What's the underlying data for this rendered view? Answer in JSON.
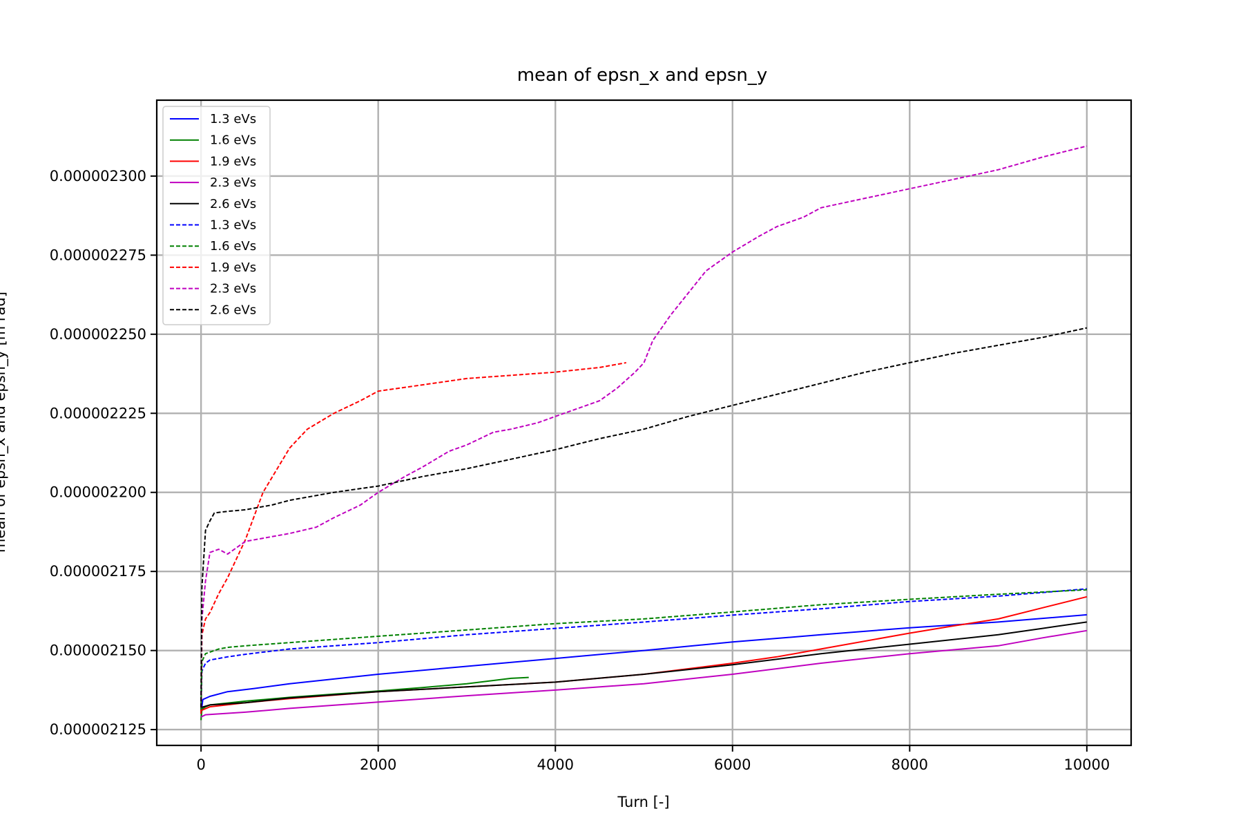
{
  "chart_data": {
    "type": "line",
    "title": "mean of epsn_x and epsn_y",
    "xlabel": "Turn [-]",
    "ylabel": "mean of epsn_x and epsn_y [m rad]",
    "xlim": [
      -500,
      10500
    ],
    "ylim": [
      2.12e-06,
      2.324e-06
    ],
    "xticks": [
      0,
      2000,
      4000,
      6000,
      8000,
      10000
    ],
    "xtick_labels": [
      "0",
      "2000",
      "4000",
      "6000",
      "8000",
      "10000"
    ],
    "yticks": [
      2.125e-06,
      2.15e-06,
      2.175e-06,
      2.2e-06,
      2.225e-06,
      2.25e-06,
      2.275e-06,
      2.3e-06
    ],
    "ytick_labels": [
      "0.000002125",
      "0.000002150",
      "0.000002175",
      "0.000002200",
      "0.000002225",
      "0.000002250",
      "0.000002275",
      "0.000002300"
    ],
    "grid": true,
    "legend_position": "top-left",
    "series": [
      {
        "name": "1.3 eVs",
        "color": "#0000ff",
        "style": "solid",
        "x": [
          0,
          20,
          100,
          300,
          600,
          1000,
          2000,
          3000,
          4000,
          5000,
          6000,
          7000,
          8000,
          9000,
          10000
        ],
        "y": [
          2.13e-06,
          2.1345e-06,
          2.1355e-06,
          2.137e-06,
          2.138e-06,
          2.1395e-06,
          2.1425e-06,
          2.145e-06,
          2.1475e-06,
          2.15e-06,
          2.1527e-06,
          2.155e-06,
          2.1572e-06,
          2.159e-06,
          2.1613e-06
        ]
      },
      {
        "name": "1.6 eVs",
        "color": "#008000",
        "style": "solid",
        "x": [
          0,
          10,
          50,
          100,
          500,
          1000,
          1500,
          2000,
          2500,
          3000,
          3500,
          3700
        ],
        "y": [
          2.128e-06,
          2.1315e-06,
          2.1322e-06,
          2.1328e-06,
          2.134e-06,
          2.1352e-06,
          2.1362e-06,
          2.1372e-06,
          2.1383e-06,
          2.1395e-06,
          2.1412e-06,
          2.1415e-06
        ]
      },
      {
        "name": "1.9 eVs",
        "color": "#ff0000",
        "style": "solid",
        "x": [
          0,
          100,
          500,
          1000,
          2000,
          3000,
          4000,
          5000,
          6000,
          6500,
          7000,
          8000,
          8500,
          9000,
          9500,
          10000
        ],
        "y": [
          2.131e-06,
          2.1322e-06,
          2.1335e-06,
          2.1348e-06,
          2.137e-06,
          2.1385e-06,
          2.14e-06,
          2.1425e-06,
          2.146e-06,
          2.148e-06,
          2.1505e-06,
          2.1555e-06,
          2.1578e-06,
          2.16e-06,
          2.1635e-06,
          2.167e-06
        ]
      },
      {
        "name": "2.3 eVs",
        "color": "#bf00bf",
        "style": "solid",
        "x": [
          0,
          50,
          500,
          1000,
          2000,
          3000,
          4000,
          5000,
          6000,
          7000,
          8000,
          9000,
          9500,
          10000
        ],
        "y": [
          2.129e-06,
          2.1297e-06,
          2.1305e-06,
          2.1317e-06,
          2.1337e-06,
          2.1357e-06,
          2.1375e-06,
          2.1395e-06,
          2.1425e-06,
          2.146e-06,
          2.149e-06,
          2.1515e-06,
          2.154e-06,
          2.1563e-06
        ]
      },
      {
        "name": "2.6 eVs",
        "color": "#000000",
        "style": "solid",
        "x": [
          0,
          100,
          500,
          1000,
          2000,
          3000,
          4000,
          5000,
          6000,
          7000,
          8000,
          9000,
          9500,
          10000
        ],
        "y": [
          2.132e-06,
          2.1328e-06,
          2.1335e-06,
          2.135e-06,
          2.137e-06,
          2.1385e-06,
          2.14e-06,
          2.1425e-06,
          2.1455e-06,
          2.149e-06,
          2.152e-06,
          2.155e-06,
          2.157e-06,
          2.159e-06
        ]
      },
      {
        "name": "1.3 eVs",
        "color": "#0000ff",
        "style": "dashed",
        "x": [
          0,
          10,
          50,
          100,
          300,
          500,
          1000,
          2000,
          3000,
          4000,
          5000,
          6000,
          7000,
          8000,
          9000,
          10000
        ],
        "y": [
          2.131e-06,
          2.1435e-06,
          2.146e-06,
          2.147e-06,
          2.148e-06,
          2.1488e-06,
          2.1505e-06,
          2.1525e-06,
          2.155e-06,
          2.157e-06,
          2.159e-06,
          2.1612e-06,
          2.1632e-06,
          2.1655e-06,
          2.1672e-06,
          2.1695e-06
        ]
      },
      {
        "name": "1.6 eVs",
        "color": "#008000",
        "style": "dashed",
        "x": [
          0,
          10,
          50,
          100,
          200,
          300,
          500,
          1000,
          2000,
          3000,
          4000,
          5000,
          6000,
          7000,
          8000,
          9000,
          10000
        ],
        "y": [
          2.131e-06,
          2.1465e-06,
          2.149e-06,
          2.1495e-06,
          2.1505e-06,
          2.151e-06,
          2.1515e-06,
          2.1525e-06,
          2.1545e-06,
          2.1565e-06,
          2.1585e-06,
          2.16e-06,
          2.1622e-06,
          2.1645e-06,
          2.1662e-06,
          2.1678e-06,
          2.1692e-06
        ]
      },
      {
        "name": "1.9 eVs",
        "color": "#ff0000",
        "style": "dashed",
        "x": [
          0,
          10,
          50,
          100,
          200,
          300,
          500,
          700,
          1000,
          1200,
          1500,
          1800,
          2000,
          2500,
          3000,
          3500,
          4000,
          4500,
          4800
        ],
        "y": [
          2.13e-06,
          2.155e-06,
          2.16e-06,
          2.162e-06,
          2.168e-06,
          2.173e-06,
          2.185e-06,
          2.2e-06,
          2.214e-06,
          2.22e-06,
          2.225e-06,
          2.229e-06,
          2.232e-06,
          2.234e-06,
          2.236e-06,
          2.237e-06,
          2.238e-06,
          2.2395e-06,
          2.241e-06
        ]
      },
      {
        "name": "2.3 eVs",
        "color": "#bf00bf",
        "style": "dashed",
        "x": [
          0,
          10,
          50,
          100,
          200,
          300,
          500,
          700,
          1000,
          1300,
          1500,
          1800,
          2000,
          2300,
          2500,
          2800,
          3000,
          3300,
          3500,
          3800,
          4000,
          4200,
          4500,
          4700,
          4900,
          5000,
          5100,
          5300,
          5500,
          5700,
          6000,
          6300,
          6500,
          6800,
          7000,
          7500,
          8000,
          8500,
          9000,
          9500,
          10000
        ],
        "y": [
          2.132e-06,
          2.16e-06,
          2.172e-06,
          2.181e-06,
          2.182e-06,
          2.1805e-06,
          2.1845e-06,
          2.1855e-06,
          2.187e-06,
          2.189e-06,
          2.192e-06,
          2.196e-06,
          2.2e-06,
          2.205e-06,
          2.208e-06,
          2.213e-06,
          2.215e-06,
          2.219e-06,
          2.22e-06,
          2.222e-06,
          2.224e-06,
          2.226e-06,
          2.229e-06,
          2.233e-06,
          2.238e-06,
          2.241e-06,
          2.248e-06,
          2.256e-06,
          2.263e-06,
          2.27e-06,
          2.276e-06,
          2.281e-06,
          2.284e-06,
          2.287e-06,
          2.29e-06,
          2.293e-06,
          2.296e-06,
          2.299e-06,
          2.302e-06,
          2.306e-06,
          2.3095e-06
        ]
      },
      {
        "name": "2.6 eVs",
        "color": "#000000",
        "style": "dashed",
        "x": [
          0,
          10,
          50,
          100,
          150,
          300,
          500,
          800,
          1000,
          1500,
          2000,
          2500,
          3000,
          3500,
          4000,
          4500,
          5000,
          5500,
          6000,
          6500,
          7000,
          7500,
          8000,
          8500,
          9000,
          9500,
          10000
        ],
        "y": [
          2.132e-06,
          2.17e-06,
          2.188e-06,
          2.191e-06,
          2.1935e-06,
          2.194e-06,
          2.1945e-06,
          2.196e-06,
          2.1975e-06,
          2.2e-06,
          2.202e-06,
          2.205e-06,
          2.2075e-06,
          2.2105e-06,
          2.2135e-06,
          2.217e-06,
          2.22e-06,
          2.224e-06,
          2.2275e-06,
          2.231e-06,
          2.2345e-06,
          2.238e-06,
          2.241e-06,
          2.244e-06,
          2.2465e-06,
          2.249e-06,
          2.252e-06
        ]
      }
    ]
  }
}
